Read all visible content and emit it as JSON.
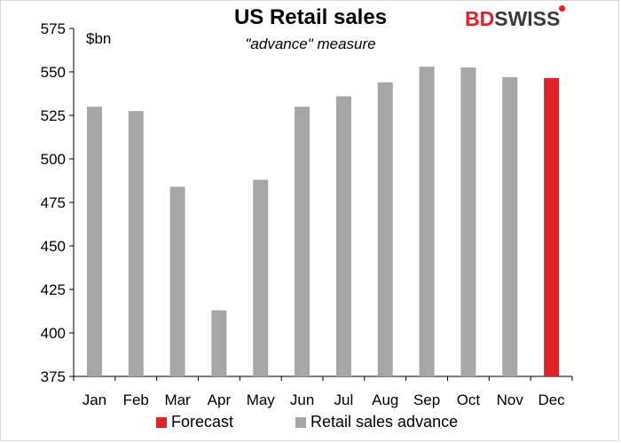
{
  "chart_data": {
    "type": "bar",
    "title": "US Retail sales",
    "subtitle": "\"advance\" measure",
    "ylabel": "$bn",
    "ylim": [
      375,
      575
    ],
    "yticks": [
      375,
      400,
      425,
      450,
      475,
      500,
      525,
      550,
      575
    ],
    "categories": [
      "Jan",
      "Feb",
      "Mar",
      "Apr",
      "May",
      "Jun",
      "Jul",
      "Aug",
      "Sep",
      "Oct",
      "Nov",
      "Dec"
    ],
    "series": [
      {
        "name": "Retail sales advance",
        "color": "#a6a6a6",
        "values": [
          530,
          527.5,
          484,
          413,
          488,
          530,
          536,
          544,
          553,
          552.5,
          547,
          null
        ]
      },
      {
        "name": "Forecast",
        "color": "#e32228",
        "values": [
          null,
          null,
          null,
          null,
          null,
          null,
          null,
          null,
          null,
          null,
          null,
          546.5
        ]
      }
    ],
    "legend": {
      "position": "bottom",
      "order": [
        "Forecast",
        "Retail sales advance"
      ]
    },
    "grid": false
  },
  "logo": {
    "part1": "BD",
    "part2": "SWISS"
  }
}
